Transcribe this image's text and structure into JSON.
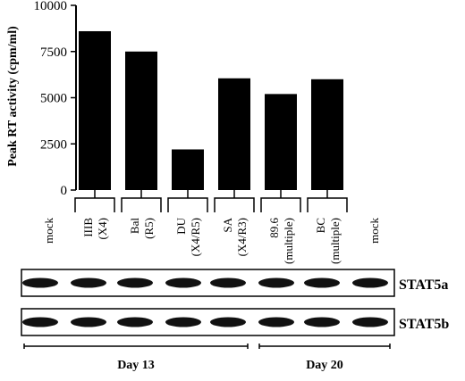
{
  "chart_data": {
    "type": "bar",
    "ylabel": "Peak RT activity (cpm/ml)",
    "ylim": [
      0,
      10000
    ],
    "yticks": [
      "0",
      "2500",
      "5000",
      "7500",
      "10000"
    ],
    "y_tick_values": [
      0,
      2500,
      5000,
      7500,
      10000
    ],
    "categories": [
      [
        "mock"
      ],
      [
        "IIIB",
        "(X4)"
      ],
      [
        "Bal",
        "(R5)"
      ],
      [
        "DU",
        "(X4/R5)"
      ],
      [
        "SA",
        "(X4/R3)"
      ],
      [
        "89.6",
        "(multiple)"
      ],
      [
        "BC",
        "(multiple)"
      ],
      [
        "mock"
      ]
    ],
    "values": [
      0,
      8600,
      7500,
      2200,
      6050,
      5200,
      6000,
      0
    ],
    "bar_color": "#000000"
  },
  "blots": [
    {
      "label": "STAT5a"
    },
    {
      "label": "STAT5b"
    }
  ],
  "timepoints": [
    {
      "label": "Day 13"
    },
    {
      "label": "Day 20"
    }
  ]
}
